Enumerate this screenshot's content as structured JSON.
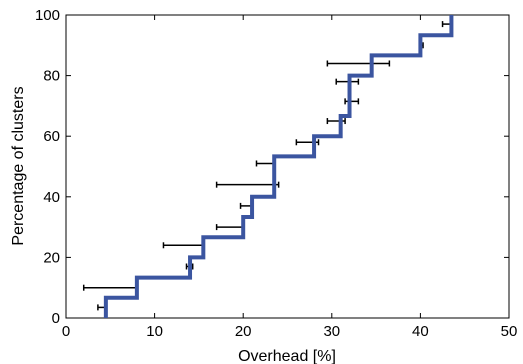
{
  "chart_data": {
    "type": "line",
    "title": "",
    "xlabel": "Overhead [%]",
    "ylabel": "Percentage of clusters",
    "xlim": [
      0,
      50
    ],
    "ylim": [
      0,
      100
    ],
    "xticks": [
      0,
      10,
      20,
      30,
      40,
      50
    ],
    "yticks": [
      0,
      20,
      40,
      60,
      80,
      100
    ],
    "grid": false,
    "line_color": "#3b55a0",
    "errorbar_color": "#000000",
    "step_series": {
      "x": [
        4.5,
        8,
        14,
        15.5,
        20,
        21,
        23.5,
        28,
        31,
        32,
        34.5,
        40,
        43.5
      ],
      "y": [
        6.67,
        13.33,
        20,
        26.67,
        33.33,
        40,
        53.33,
        60,
        66.67,
        80,
        86.67,
        93.33,
        100
      ]
    },
    "error_bars": [
      {
        "y": 3.5,
        "low": 3.6,
        "high": 4.6
      },
      {
        "y": 10,
        "low": 2,
        "high": 8
      },
      {
        "y": 17,
        "low": 13.6,
        "high": 14.3
      },
      {
        "y": 24,
        "low": 11,
        "high": 15.5
      },
      {
        "y": 30,
        "low": 17,
        "high": 20
      },
      {
        "y": 37,
        "low": 19.7,
        "high": 21
      },
      {
        "y": 44,
        "low": 17,
        "high": 24
      },
      {
        "y": 51,
        "low": 21.5,
        "high": 23.5
      },
      {
        "y": 58,
        "low": 26,
        "high": 28.5
      },
      {
        "y": 65,
        "low": 29.5,
        "high": 31.5
      },
      {
        "y": 71.5,
        "low": 31.5,
        "high": 33
      },
      {
        "y": 78,
        "low": 30.5,
        "high": 33
      },
      {
        "y": 84,
        "low": 29.5,
        "high": 36.5
      },
      {
        "y": 90,
        "low": 40,
        "high": 40.3
      },
      {
        "y": 97,
        "low": 42.5,
        "high": 43.5
      }
    ]
  }
}
